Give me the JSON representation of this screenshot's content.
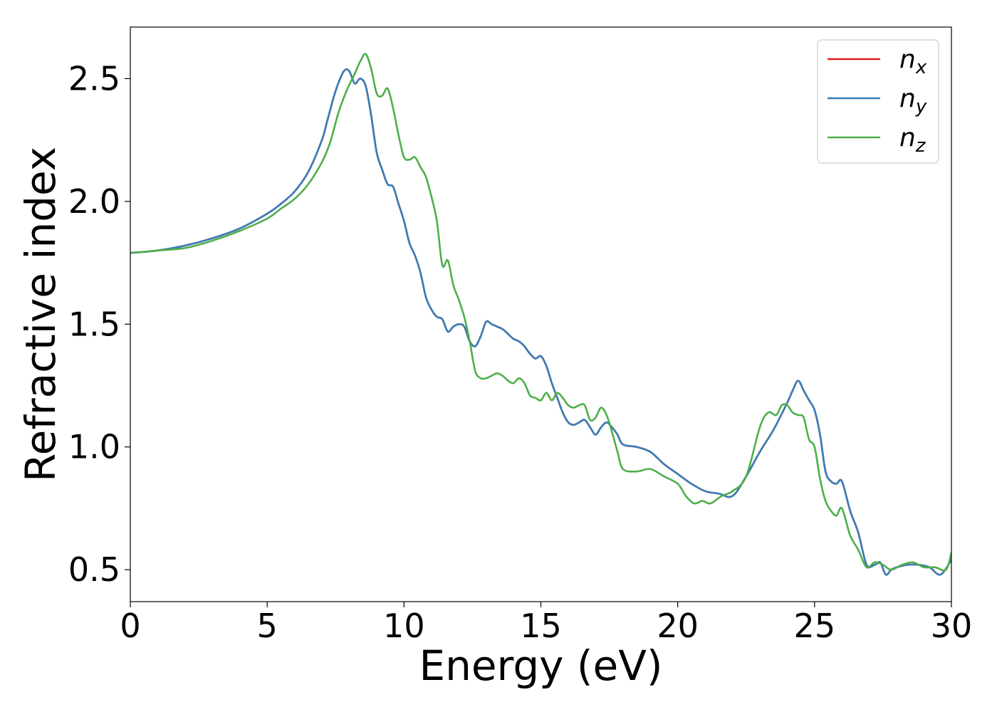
{
  "chart_data": {
    "type": "line",
    "title": "",
    "xlabel": "Energy (eV)",
    "ylabel": "Refractive index",
    "xlim": [
      0,
      30
    ],
    "ylim": [
      0.37,
      2.71
    ],
    "x_ticks": [
      0,
      5,
      10,
      15,
      20,
      25,
      30
    ],
    "x_tick_labels": [
      "0",
      "5",
      "10",
      "15",
      "20",
      "25",
      "30"
    ],
    "y_ticks": [
      0.5,
      1.0,
      1.5,
      2.0,
      2.5
    ],
    "y_tick_labels": [
      "0.5",
      "1.0",
      "1.5",
      "2.0",
      "2.5"
    ],
    "grid": false,
    "legend_position": "top-right",
    "series": [
      {
        "name": "n",
        "subscript": "x",
        "color": "#e41a1c",
        "x": [
          0,
          1,
          2,
          3,
          4,
          5,
          5.5,
          6,
          6.5,
          7,
          7.2,
          7.5,
          7.8,
          8.0,
          8.2,
          8.4,
          8.6,
          8.8,
          9.0,
          9.2,
          9.4,
          9.6,
          9.8,
          10.0,
          10.2,
          10.4,
          10.6,
          10.8,
          11.0,
          11.2,
          11.4,
          11.6,
          11.8,
          12.0,
          12.2,
          12.4,
          12.6,
          12.8,
          13.0,
          13.2,
          13.4,
          13.6,
          13.8,
          14.0,
          14.2,
          14.4,
          14.6,
          14.8,
          15.0,
          15.2,
          15.4,
          15.6,
          15.8,
          16.0,
          16.2,
          16.4,
          16.6,
          16.8,
          17.0,
          17.2,
          17.4,
          17.6,
          17.8,
          18.0,
          18.5,
          19.0,
          19.5,
          20.0,
          20.5,
          21.0,
          21.5,
          22.0,
          22.5,
          23.0,
          23.5,
          24.0,
          24.2,
          24.4,
          24.6,
          24.8,
          25.0,
          25.2,
          25.4,
          25.6,
          25.8,
          26.0,
          26.3,
          26.6,
          26.9,
          27.2,
          27.4,
          27.6,
          27.8,
          28.0,
          28.4,
          28.8,
          29.2,
          29.6,
          30.0
        ],
        "y": [
          1.79,
          1.8,
          1.82,
          1.85,
          1.89,
          1.95,
          1.99,
          2.04,
          2.12,
          2.25,
          2.33,
          2.45,
          2.53,
          2.53,
          2.48,
          2.5,
          2.47,
          2.35,
          2.2,
          2.13,
          2.07,
          2.06,
          1.99,
          1.92,
          1.83,
          1.78,
          1.71,
          1.61,
          1.56,
          1.53,
          1.52,
          1.47,
          1.49,
          1.5,
          1.49,
          1.43,
          1.41,
          1.45,
          1.51,
          1.5,
          1.49,
          1.48,
          1.46,
          1.44,
          1.43,
          1.41,
          1.38,
          1.36,
          1.37,
          1.33,
          1.26,
          1.2,
          1.14,
          1.1,
          1.09,
          1.1,
          1.11,
          1.08,
          1.05,
          1.08,
          1.1,
          1.08,
          1.05,
          1.01,
          1.0,
          0.98,
          0.93,
          0.89,
          0.85,
          0.82,
          0.81,
          0.8,
          0.88,
          0.98,
          1.07,
          1.18,
          1.23,
          1.27,
          1.23,
          1.19,
          1.15,
          1.05,
          0.9,
          0.86,
          0.85,
          0.86,
          0.74,
          0.65,
          0.52,
          0.52,
          0.53,
          0.48,
          0.5,
          0.51,
          0.52,
          0.52,
          0.51,
          0.48,
          0.54
        ]
      },
      {
        "name": "n",
        "subscript": "y",
        "color": "#377eb8",
        "x": [
          0,
          1,
          2,
          3,
          4,
          5,
          5.5,
          6,
          6.5,
          7,
          7.2,
          7.5,
          7.8,
          8.0,
          8.2,
          8.4,
          8.6,
          8.8,
          9.0,
          9.2,
          9.4,
          9.6,
          9.8,
          10.0,
          10.2,
          10.4,
          10.6,
          10.8,
          11.0,
          11.2,
          11.4,
          11.6,
          11.8,
          12.0,
          12.2,
          12.4,
          12.6,
          12.8,
          13.0,
          13.2,
          13.4,
          13.6,
          13.8,
          14.0,
          14.2,
          14.4,
          14.6,
          14.8,
          15.0,
          15.2,
          15.4,
          15.6,
          15.8,
          16.0,
          16.2,
          16.4,
          16.6,
          16.8,
          17.0,
          17.2,
          17.4,
          17.6,
          17.8,
          18.0,
          18.5,
          19.0,
          19.5,
          20.0,
          20.5,
          21.0,
          21.5,
          22.0,
          22.5,
          23.0,
          23.5,
          24.0,
          24.2,
          24.4,
          24.6,
          24.8,
          25.0,
          25.2,
          25.4,
          25.6,
          25.8,
          26.0,
          26.3,
          26.6,
          26.9,
          27.2,
          27.4,
          27.6,
          27.8,
          28.0,
          28.4,
          28.8,
          29.2,
          29.6,
          30.0
        ],
        "y": [
          1.79,
          1.8,
          1.82,
          1.85,
          1.89,
          1.95,
          1.99,
          2.04,
          2.12,
          2.25,
          2.33,
          2.45,
          2.53,
          2.53,
          2.48,
          2.5,
          2.47,
          2.35,
          2.2,
          2.13,
          2.07,
          2.06,
          1.99,
          1.92,
          1.83,
          1.78,
          1.71,
          1.61,
          1.56,
          1.53,
          1.52,
          1.47,
          1.49,
          1.5,
          1.49,
          1.43,
          1.41,
          1.45,
          1.51,
          1.5,
          1.49,
          1.48,
          1.46,
          1.44,
          1.43,
          1.41,
          1.38,
          1.36,
          1.37,
          1.33,
          1.26,
          1.2,
          1.14,
          1.1,
          1.09,
          1.1,
          1.11,
          1.08,
          1.05,
          1.08,
          1.1,
          1.08,
          1.05,
          1.01,
          1.0,
          0.98,
          0.93,
          0.89,
          0.85,
          0.82,
          0.81,
          0.8,
          0.88,
          0.98,
          1.07,
          1.18,
          1.23,
          1.27,
          1.23,
          1.19,
          1.15,
          1.05,
          0.9,
          0.86,
          0.85,
          0.86,
          0.74,
          0.65,
          0.52,
          0.52,
          0.53,
          0.48,
          0.5,
          0.51,
          0.52,
          0.52,
          0.51,
          0.48,
          0.54
        ]
      },
      {
        "name": "n",
        "subscript": "z",
        "color": "#4daf4a",
        "x": [
          0,
          1,
          2,
          3,
          4,
          5,
          5.5,
          6,
          6.5,
          7,
          7.3,
          7.6,
          7.9,
          8.2,
          8.4,
          8.6,
          8.8,
          9.0,
          9.2,
          9.4,
          9.6,
          9.8,
          10.0,
          10.2,
          10.4,
          10.6,
          10.8,
          11.0,
          11.2,
          11.4,
          11.6,
          11.8,
          12.0,
          12.2,
          12.4,
          12.6,
          12.8,
          13.0,
          13.2,
          13.4,
          13.6,
          13.8,
          14.0,
          14.2,
          14.4,
          14.6,
          14.8,
          15.0,
          15.2,
          15.4,
          15.6,
          15.8,
          16.0,
          16.2,
          16.4,
          16.6,
          16.8,
          17.0,
          17.2,
          17.4,
          17.6,
          17.8,
          18.0,
          18.5,
          19.0,
          19.5,
          20.0,
          20.3,
          20.6,
          20.9,
          21.2,
          21.6,
          22.0,
          22.5,
          23.0,
          23.3,
          23.6,
          23.8,
          24.0,
          24.2,
          24.4,
          24.6,
          24.8,
          25.0,
          25.2,
          25.4,
          25.6,
          25.8,
          26.0,
          26.3,
          26.6,
          26.9,
          27.2,
          27.5,
          27.8,
          28.2,
          28.6,
          29.0,
          29.4,
          29.8,
          30.0
        ],
        "y": [
          1.79,
          1.8,
          1.81,
          1.84,
          1.88,
          1.93,
          1.97,
          2.01,
          2.07,
          2.16,
          2.24,
          2.36,
          2.45,
          2.52,
          2.57,
          2.6,
          2.54,
          2.44,
          2.43,
          2.46,
          2.38,
          2.27,
          2.18,
          2.17,
          2.18,
          2.14,
          2.1,
          2.02,
          1.92,
          1.74,
          1.76,
          1.66,
          1.6,
          1.53,
          1.43,
          1.31,
          1.28,
          1.28,
          1.29,
          1.3,
          1.29,
          1.27,
          1.26,
          1.28,
          1.26,
          1.21,
          1.2,
          1.19,
          1.22,
          1.19,
          1.22,
          1.2,
          1.17,
          1.16,
          1.17,
          1.17,
          1.11,
          1.12,
          1.16,
          1.13,
          1.06,
          0.98,
          0.91,
          0.9,
          0.91,
          0.88,
          0.85,
          0.8,
          0.77,
          0.78,
          0.77,
          0.8,
          0.82,
          0.88,
          1.08,
          1.14,
          1.13,
          1.17,
          1.17,
          1.14,
          1.13,
          1.12,
          1.03,
          1.0,
          0.87,
          0.78,
          0.74,
          0.72,
          0.75,
          0.64,
          0.58,
          0.51,
          0.53,
          0.52,
          0.5,
          0.52,
          0.53,
          0.51,
          0.51,
          0.5,
          0.57
        ]
      }
    ]
  }
}
